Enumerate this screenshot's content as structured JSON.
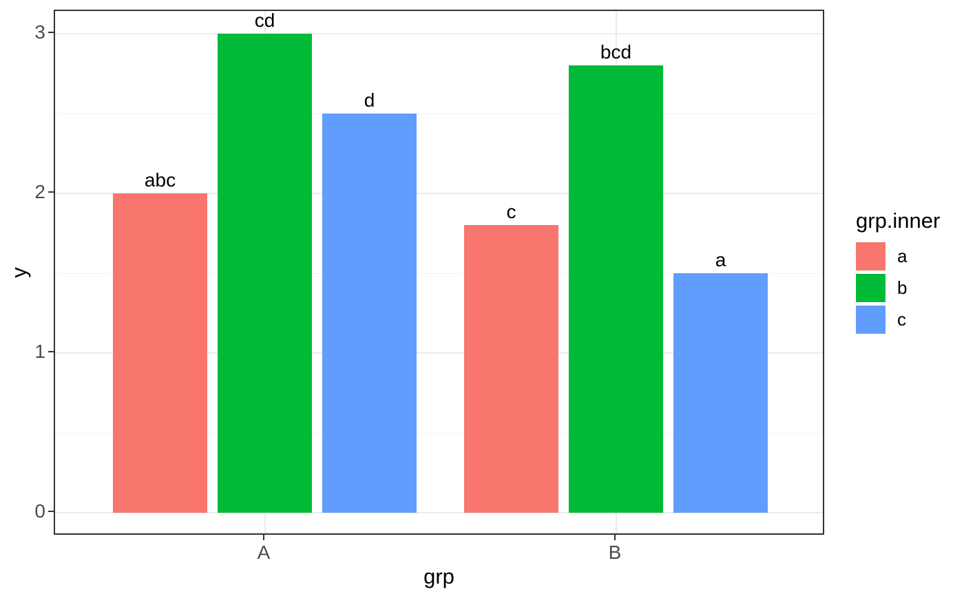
{
  "chart_data": {
    "type": "bar",
    "title": "",
    "xlabel": "grp",
    "ylabel": "y",
    "categories": [
      "A",
      "B"
    ],
    "series": [
      {
        "name": "a",
        "color": "#F8766D",
        "values": [
          2.0,
          1.8
        ],
        "bar_labels": [
          "abc",
          "c"
        ]
      },
      {
        "name": "b",
        "color": "#00BA38",
        "values": [
          3.0,
          2.8
        ],
        "bar_labels": [
          "cd",
          "bcd"
        ]
      },
      {
        "name": "c",
        "color": "#619CFF",
        "values": [
          2.5,
          1.5
        ],
        "bar_labels": [
          "d",
          "a"
        ]
      }
    ],
    "legend": {
      "title": "grp.inner",
      "position": "right",
      "entries": [
        "a",
        "b",
        "c"
      ]
    },
    "yticks": [
      0,
      1,
      2,
      3
    ],
    "minor_ticks": [
      0.5,
      1.5,
      2.5
    ],
    "ylim": [
      0,
      3
    ],
    "grid": "on",
    "style": {
      "panel_background": "#FFFFFF",
      "panel_border": "#333333",
      "grid_major": "#EBEBEB",
      "grid_minor": "#F2F2F2",
      "tick_text_color": "#4D4D4D",
      "axis_title_color": "#000000",
      "bar_label_color": "#000000"
    }
  }
}
